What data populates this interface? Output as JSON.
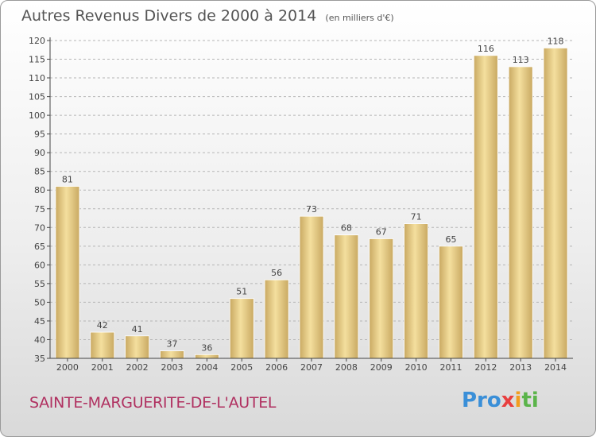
{
  "title": {
    "main": "Autres Revenus Divers de 2000 à 2014",
    "unit": "(en milliers d'€)"
  },
  "location": "SAINTE-MARGUERITE-DE-L'AUTEL",
  "logo": {
    "text": "Proxiti",
    "parts": [
      "Pro",
      "x",
      "i",
      "ti"
    ]
  },
  "colors": {
    "bar": "#e6c98a",
    "bar_light": "#f4df9e",
    "bar_dark": "#c9a962",
    "axis": "#444444",
    "grid": "#b5b5b5",
    "label": "#444444"
  },
  "chart_data": {
    "type": "bar",
    "title": "Autres Revenus Divers de 2000 à 2014",
    "subtitle": "(en milliers d'€)",
    "xlabel": "",
    "ylabel": "",
    "categories": [
      "2000",
      "2001",
      "2002",
      "2003",
      "2004",
      "2005",
      "2006",
      "2007",
      "2008",
      "2009",
      "2010",
      "2011",
      "2012",
      "2013",
      "2014"
    ],
    "values": [
      81,
      42,
      41,
      37,
      36,
      51,
      56,
      73,
      68,
      67,
      71,
      65,
      116,
      113,
      118
    ],
    "data_labels": [
      "81",
      "42",
      "41",
      "37",
      "36",
      "51",
      "56",
      "73",
      "68",
      "67",
      "71",
      "65",
      "116",
      "113",
      "118"
    ],
    "ylim": [
      35,
      120
    ],
    "yticks": [
      35,
      40,
      45,
      50,
      55,
      60,
      65,
      70,
      75,
      80,
      85,
      90,
      95,
      100,
      105,
      110,
      115,
      120
    ],
    "ytick_labels": [
      "35",
      "40",
      "45",
      "50",
      "55",
      "60",
      "65",
      "70",
      "75",
      "80",
      "85",
      "90",
      "95",
      "100",
      "105",
      "110",
      "115",
      "120"
    ],
    "grid": "horizontal dashed",
    "legend": "none"
  }
}
